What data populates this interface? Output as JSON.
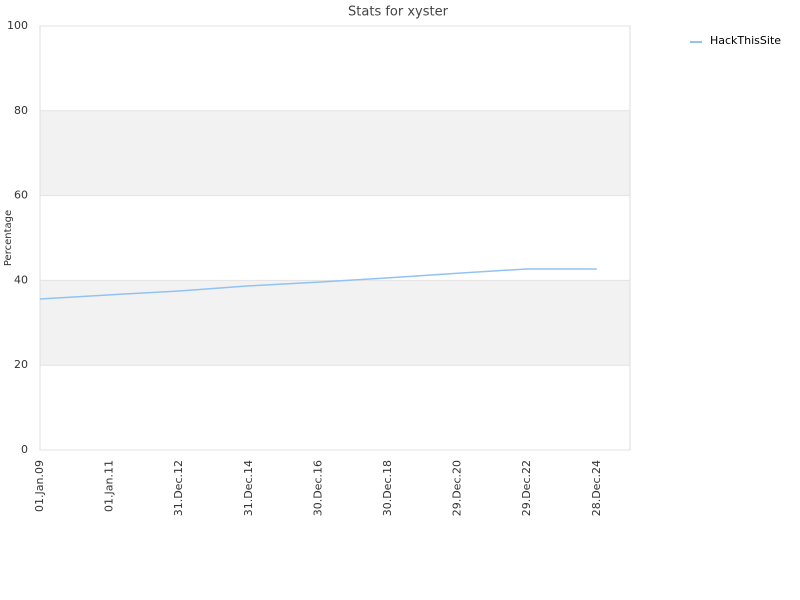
{
  "chart_data": {
    "type": "line",
    "title": "Stats for xyster",
    "y_label": "Percentage",
    "categories": [
      "01.Jan.09",
      "01.Jan.11",
      "31.Dec.12",
      "31.Dec.14",
      "30.Dec.16",
      "30.Dec.18",
      "29.Dec.20",
      "29.Dec.22",
      "28.Dec.24"
    ],
    "series": [
      {
        "name": "HackThisSite",
        "color": "#90c3f2",
        "values": [
          35.6,
          36.6,
          37.5,
          38.7,
          39.6,
          40.6,
          41.7,
          42.7,
          42.7
        ]
      }
    ],
    "ylim": [
      0,
      100
    ],
    "yticks": [
      0,
      20,
      40,
      60,
      80,
      100
    ],
    "grid": true,
    "bands": [
      [
        20,
        40
      ],
      [
        60,
        80
      ]
    ],
    "legend": "top-right"
  }
}
